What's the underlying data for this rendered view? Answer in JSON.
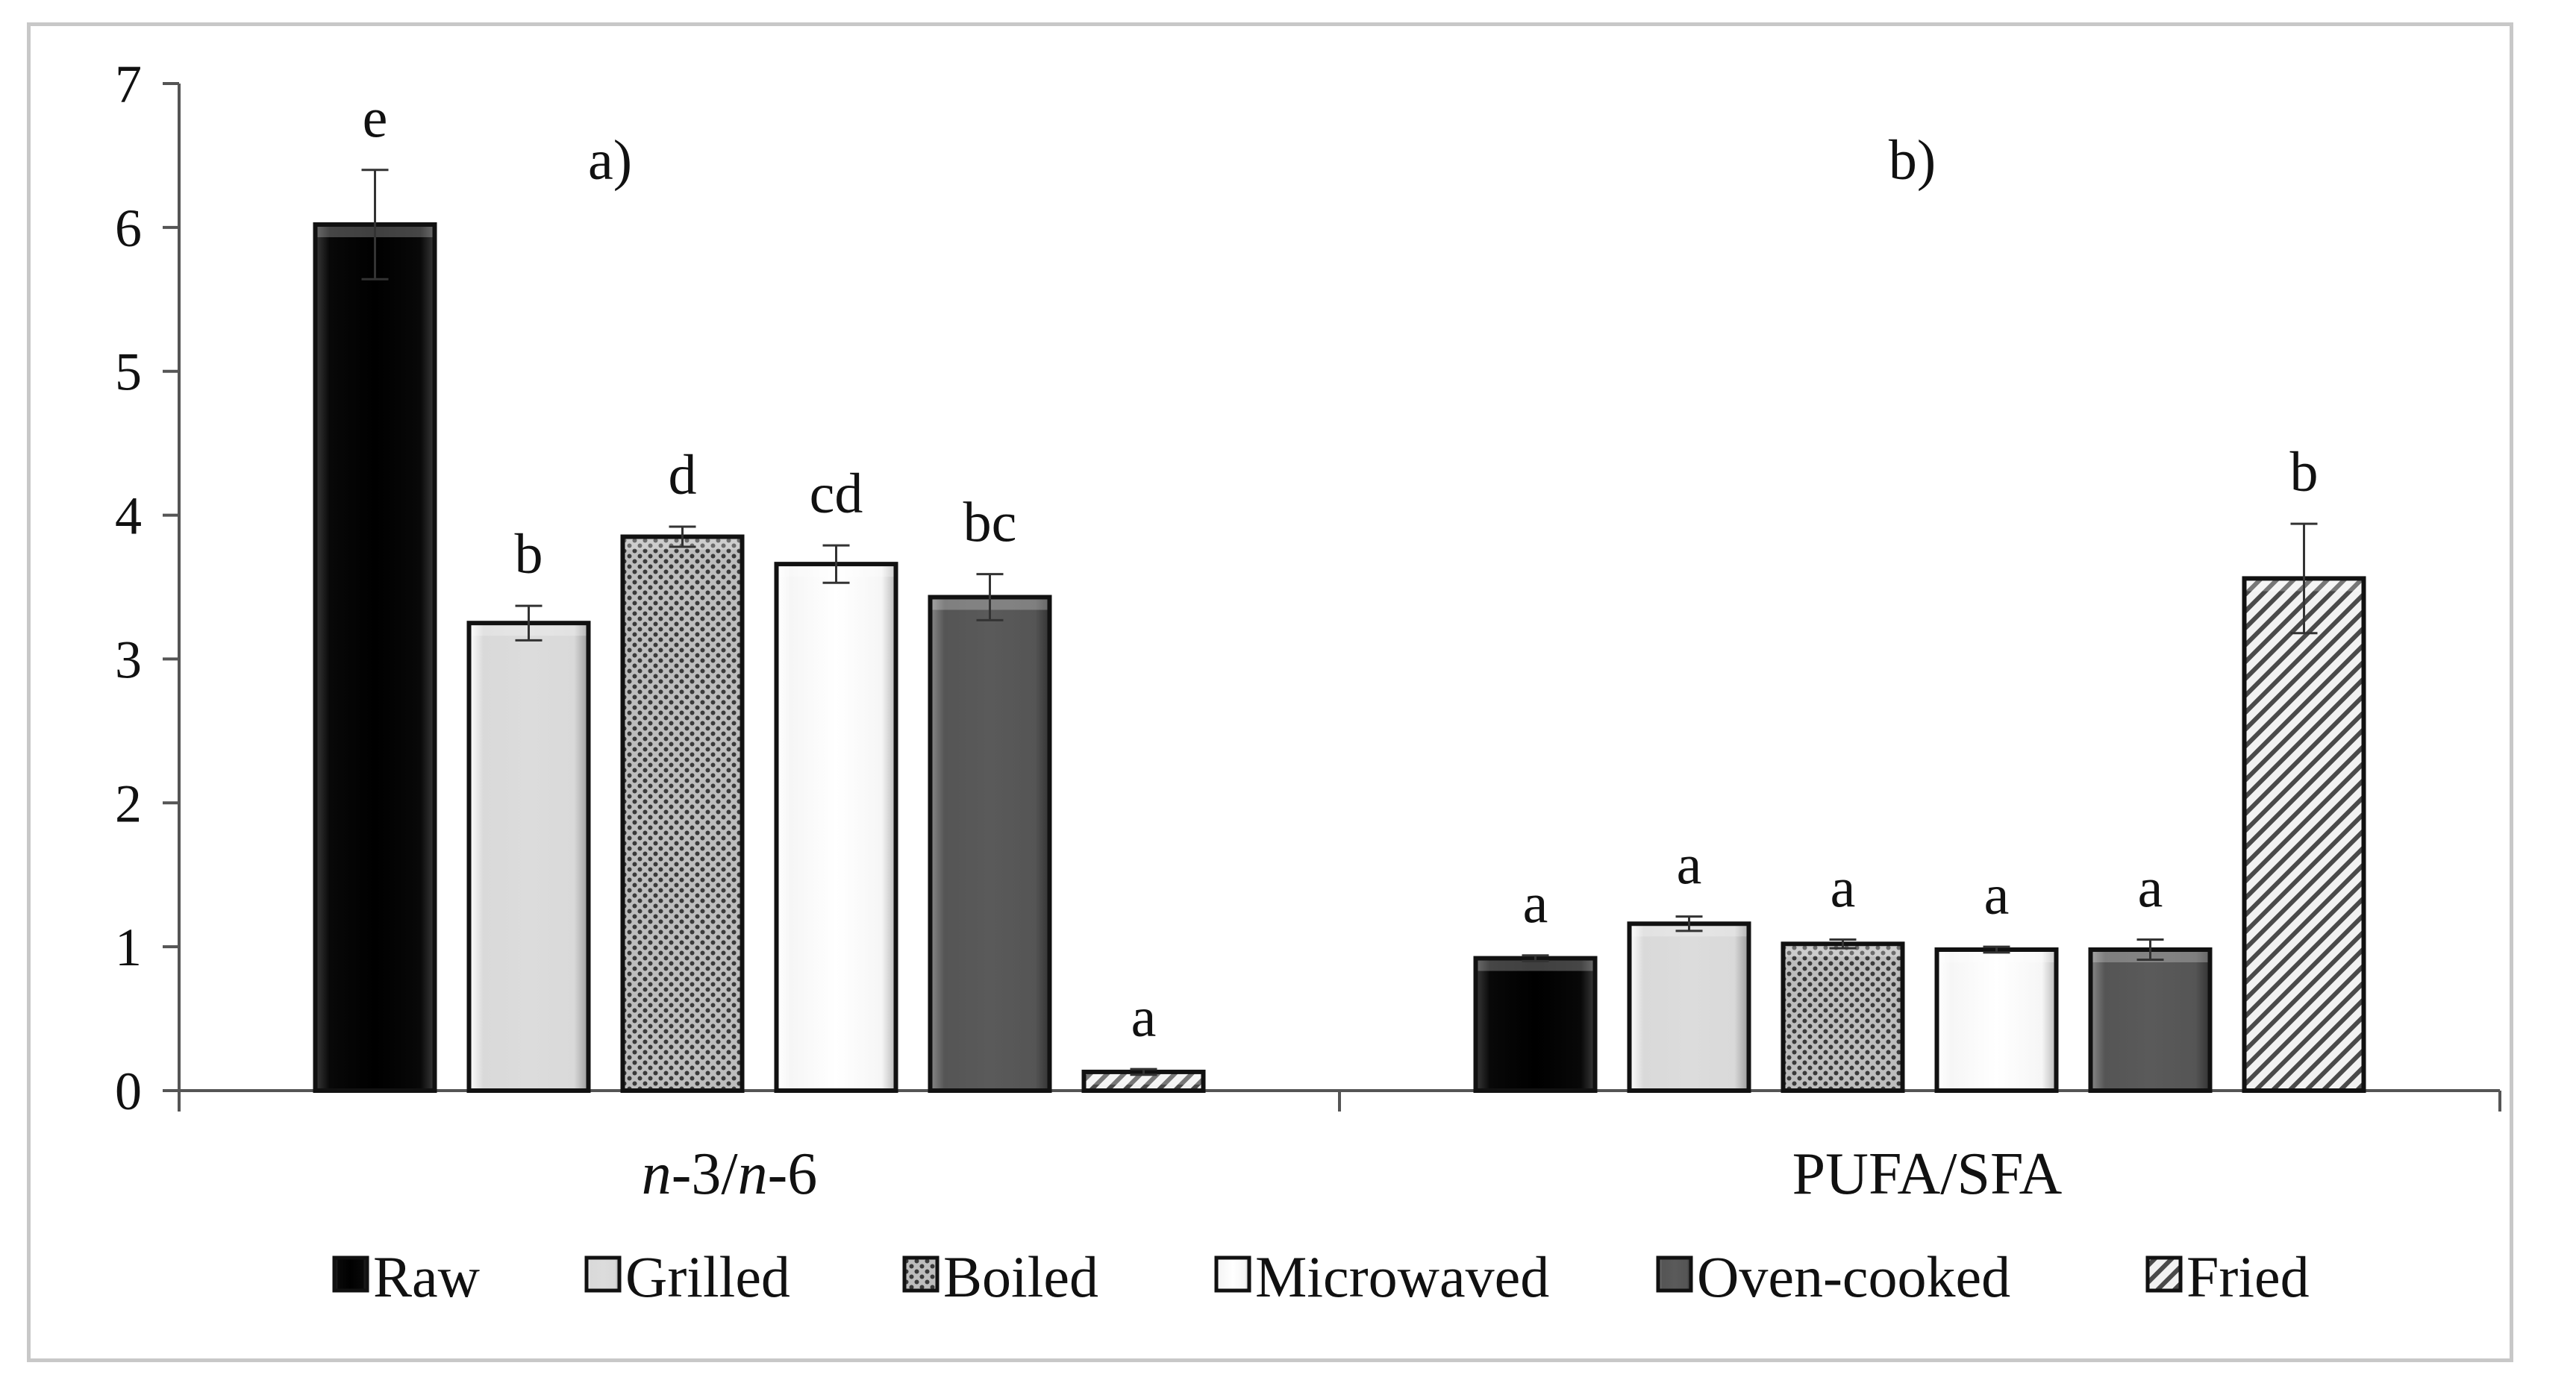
{
  "chart_data": {
    "type": "bar",
    "title": "",
    "xlabel": "",
    "ylabel": "",
    "ylim": [
      0,
      7
    ],
    "yticks": [
      "0",
      "1",
      "2",
      "3",
      "4",
      "5",
      "6",
      "7"
    ],
    "categories": [
      "n-3/n-6",
      "PUFA/SFA"
    ],
    "category_parts": [
      [
        {
          "text": "n",
          "italic": true
        },
        {
          "text": "-3/",
          "italic": false
        },
        {
          "text": "n",
          "italic": true
        },
        {
          "text": "-6",
          "italic": false
        }
      ],
      [
        {
          "text": "PUFA/SFA",
          "italic": false
        }
      ]
    ],
    "panel_labels": [
      "a)",
      "b)"
    ],
    "legend_position": "bottom",
    "series": [
      {
        "name": "Raw",
        "values": [
          6.02,
          0.92
        ],
        "errors": [
          0.38,
          0.02
        ],
        "letters": [
          "e",
          "a"
        ],
        "fill": "#151515",
        "pattern": "solid-dark"
      },
      {
        "name": "Grilled",
        "values": [
          3.25,
          1.16
        ],
        "errors": [
          0.12,
          0.05
        ],
        "letters": [
          "b",
          "a"
        ],
        "fill": "#e0e0e0",
        "pattern": "light-gradient"
      },
      {
        "name": "Boiled",
        "values": [
          3.85,
          1.02
        ],
        "errors": [
          0.07,
          0.03
        ],
        "letters": [
          "d",
          "a"
        ],
        "fill": "#9a9a9a",
        "pattern": "dots"
      },
      {
        "name": "Microwaved",
        "values": [
          3.66,
          0.98
        ],
        "errors": [
          0.13,
          0.02
        ],
        "letters": [
          "cd",
          "a"
        ],
        "fill": "#fafafa",
        "pattern": "white-gradient"
      },
      {
        "name": "Oven-cooked",
        "values": [
          3.43,
          0.98
        ],
        "errors": [
          0.16,
          0.07
        ],
        "letters": [
          "bc",
          "a"
        ],
        "fill": "#5a5a5a",
        "pattern": "solid-gray"
      },
      {
        "name": "Fried",
        "values": [
          0.13,
          3.56
        ],
        "errors": [
          0.02,
          0.38
        ],
        "letters": [
          "a",
          "b"
        ],
        "fill": "#d8d8d8",
        "pattern": "diagonal"
      }
    ]
  }
}
